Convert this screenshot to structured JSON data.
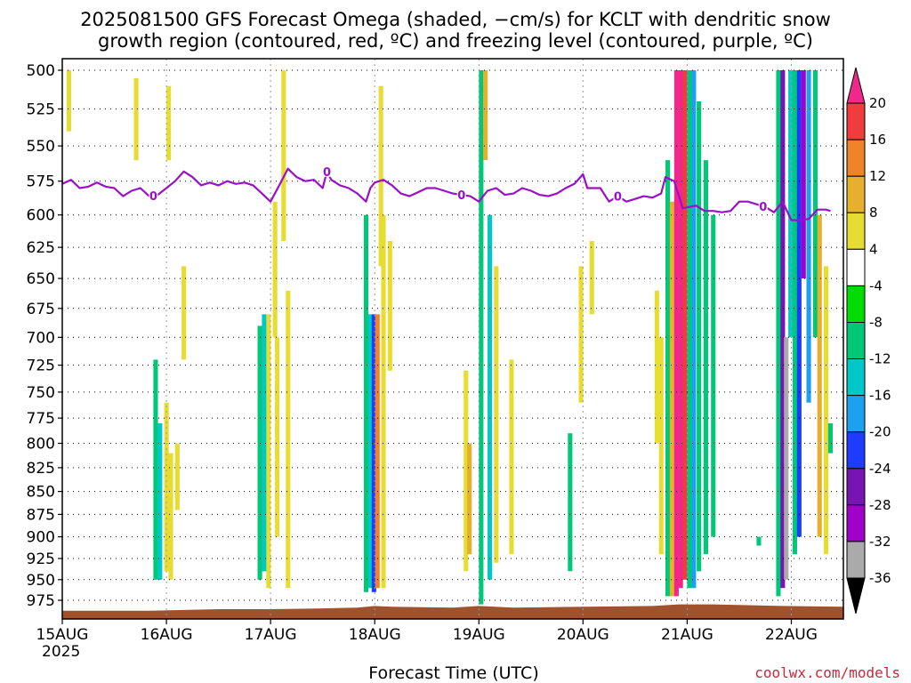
{
  "chart_data": {
    "type": "heatmap",
    "title_line1": "2025081500 GFS Forecast Omega (shaded, −cm/s) for KCLT with dendritic snow",
    "title_line2": "growth region (contoured, red, ºC) and freezing level (contoured, purple, ºC)",
    "xlabel": "Forecast Time (UTC)",
    "credit": "coolwx.com/models",
    "y_axis": {
      "ticks": [
        500,
        525,
        550,
        575,
        600,
        625,
        650,
        675,
        700,
        725,
        750,
        775,
        800,
        825,
        850,
        875,
        900,
        925,
        950,
        975
      ],
      "range": [
        500,
        1000
      ],
      "scale": "log-pressure"
    },
    "x_axis": {
      "ticks": [
        {
          "label": "15AUG",
          "sub": "2025",
          "hour": 0
        },
        {
          "label": "16AUG",
          "sub": "",
          "hour": 24
        },
        {
          "label": "17AUG",
          "sub": "",
          "hour": 48
        },
        {
          "label": "18AUG",
          "sub": "",
          "hour": 72
        },
        {
          "label": "19AUG",
          "sub": "",
          "hour": 96
        },
        {
          "label": "20AUG",
          "sub": "",
          "hour": 120
        },
        {
          "label": "21AUG",
          "sub": "",
          "hour": 144
        },
        {
          "label": "22AUG",
          "sub": "",
          "hour": 168
        }
      ],
      "range": [
        0,
        180
      ]
    },
    "grid": true,
    "colorbar": {
      "labels": [
        20,
        16,
        12,
        8,
        4,
        -4,
        -8,
        -12,
        -16,
        -20,
        -24,
        -28,
        -32,
        -36
      ],
      "colors": [
        "#f0288c",
        "#f03c3c",
        "#f08228",
        "#e6af2d",
        "#e6dc32",
        "#ffffff",
        "#00dc00",
        "#00c878",
        "#00c8c8",
        "#1ea0f0",
        "#1e3cff",
        "#7814b4",
        "#a000c8",
        "#aaaaaa",
        "#000000"
      ]
    },
    "shading_bands": [
      {
        "hour": 1.5,
        "p_top": 500,
        "p_bot": 540,
        "value": 5
      },
      {
        "hour": 17,
        "p_top": 505,
        "p_bot": 560,
        "value": 5
      },
      {
        "hour": 21.5,
        "p_top": 720,
        "p_bot": 950,
        "value": -10
      },
      {
        "hour": 22.5,
        "p_top": 780,
        "p_bot": 950,
        "value": -14
      },
      {
        "hour": 24,
        "p_top": 760,
        "p_bot": 940,
        "value": 6
      },
      {
        "hour": 24.5,
        "p_top": 510,
        "p_bot": 560,
        "value": 5
      },
      {
        "hour": 25,
        "p_top": 810,
        "p_bot": 950,
        "value": 5
      },
      {
        "hour": 26.5,
        "p_top": 800,
        "p_bot": 870,
        "value": 5
      },
      {
        "hour": 28,
        "p_top": 640,
        "p_bot": 720,
        "value": 5
      },
      {
        "hour": 45.5,
        "p_top": 690,
        "p_bot": 950,
        "value": -8
      },
      {
        "hour": 46.5,
        "p_top": 680,
        "p_bot": 940,
        "value": -14
      },
      {
        "hour": 47.5,
        "p_top": 680,
        "p_bot": 960,
        "value": 6
      },
      {
        "hour": 49,
        "p_top": 590,
        "p_bot": 700,
        "value": 5
      },
      {
        "hour": 49.5,
        "p_top": 700,
        "p_bot": 900,
        "value": 5
      },
      {
        "hour": 51,
        "p_top": 500,
        "p_bot": 620,
        "value": 6
      },
      {
        "hour": 52,
        "p_top": 660,
        "p_bot": 960,
        "value": 6
      },
      {
        "hour": 70,
        "p_top": 600,
        "p_bot": 965,
        "value": -8
      },
      {
        "hour": 71,
        "p_top": 680,
        "p_bot": 960,
        "value": -14
      },
      {
        "hour": 71.8,
        "p_top": 680,
        "p_bot": 965,
        "value": -22
      },
      {
        "hour": 72.6,
        "p_top": 680,
        "p_bot": 960,
        "value": 12
      },
      {
        "hour": 73.4,
        "p_top": 510,
        "p_bot": 640,
        "value": 6
      },
      {
        "hour": 74,
        "p_top": 600,
        "p_bot": 960,
        "value": 6
      },
      {
        "hour": 75.5,
        "p_top": 620,
        "p_bot": 730,
        "value": 5
      },
      {
        "hour": 93,
        "p_top": 730,
        "p_bot": 940,
        "value": 6
      },
      {
        "hour": 93.8,
        "p_top": 800,
        "p_bot": 920,
        "value": 10
      },
      {
        "hour": 96.5,
        "p_top": 500,
        "p_bot": 980,
        "value": -8
      },
      {
        "hour": 97.5,
        "p_top": 500,
        "p_bot": 560,
        "value": 10
      },
      {
        "hour": 98.5,
        "p_top": 600,
        "p_bot": 950,
        "value": -14
      },
      {
        "hour": 100,
        "p_top": 640,
        "p_bot": 930,
        "value": 5
      },
      {
        "hour": 103.5,
        "p_top": 720,
        "p_bot": 920,
        "value": 5
      },
      {
        "hour": 117,
        "p_top": 790,
        "p_bot": 940,
        "value": -8
      },
      {
        "hour": 119.5,
        "p_top": 640,
        "p_bot": 760,
        "value": 5
      },
      {
        "hour": 122,
        "p_top": 620,
        "p_bot": 680,
        "value": 6
      },
      {
        "hour": 137,
        "p_top": 660,
        "p_bot": 800,
        "value": 5
      },
      {
        "hour": 138,
        "p_top": 700,
        "p_bot": 920,
        "value": 6
      },
      {
        "hour": 139.5,
        "p_top": 560,
        "p_bot": 970,
        "value": -8
      },
      {
        "hour": 140.5,
        "p_top": 590,
        "p_bot": 970,
        "value": 10
      },
      {
        "hour": 141.5,
        "p_top": 500,
        "p_bot": 970,
        "value": 20
      },
      {
        "hour": 142.5,
        "p_top": 500,
        "p_bot": 960,
        "value": 20
      },
      {
        "hour": 143.5,
        "p_top": 500,
        "p_bot": 950,
        "value": 16
      },
      {
        "hour": 144.5,
        "p_top": 500,
        "p_bot": 960,
        "value": -10
      },
      {
        "hour": 145.5,
        "p_top": 500,
        "p_bot": 960,
        "value": -16
      },
      {
        "hour": 146.7,
        "p_top": 520,
        "p_bot": 940,
        "value": -10
      },
      {
        "hour": 148.3,
        "p_top": 560,
        "p_bot": 920,
        "value": -8
      },
      {
        "hour": 150,
        "p_top": 600,
        "p_bot": 900,
        "value": -8
      },
      {
        "hour": 160.5,
        "p_top": 900,
        "p_bot": 910,
        "value": -8
      },
      {
        "hour": 165,
        "p_top": 500,
        "p_bot": 970,
        "value": -10
      },
      {
        "hour": 166,
        "p_top": 500,
        "p_bot": 960,
        "value": -24
      },
      {
        "hour": 166.8,
        "p_top": 700,
        "p_bot": 950,
        "value": -34
      },
      {
        "hour": 167.8,
        "p_top": 500,
        "p_bot": 700,
        "value": -12
      },
      {
        "hour": 168.8,
        "p_top": 500,
        "p_bot": 920,
        "value": -8
      },
      {
        "hour": 169.8,
        "p_top": 500,
        "p_bot": 900,
        "value": -22
      },
      {
        "hour": 170.8,
        "p_top": 500,
        "p_bot": 650,
        "value": -30
      },
      {
        "hour": 172,
        "p_top": 500,
        "p_bot": 760,
        "value": -16
      },
      {
        "hour": 173.5,
        "p_top": 500,
        "p_bot": 700,
        "value": -10
      },
      {
        "hour": 174.5,
        "p_top": 600,
        "p_bot": 900,
        "value": 10
      },
      {
        "hour": 176,
        "p_top": 640,
        "p_bot": 920,
        "value": 6
      },
      {
        "hour": 177,
        "p_top": 780,
        "p_bot": 810,
        "value": -8
      }
    ],
    "freezing_level": {
      "label": "0",
      "label_hours": [
        21,
        61,
        92,
        128,
        161.5
      ],
      "points": [
        [
          0,
          577
        ],
        [
          2,
          574
        ],
        [
          4,
          580
        ],
        [
          6,
          579
        ],
        [
          8,
          576
        ],
        [
          10,
          579
        ],
        [
          12,
          580
        ],
        [
          14,
          586
        ],
        [
          16,
          582
        ],
        [
          18,
          580
        ],
        [
          20,
          586
        ],
        [
          22,
          585
        ],
        [
          24,
          580
        ],
        [
          26,
          575
        ],
        [
          28,
          568
        ],
        [
          30,
          572
        ],
        [
          32,
          578
        ],
        [
          34,
          576
        ],
        [
          36,
          578
        ],
        [
          38,
          575
        ],
        [
          40,
          577
        ],
        [
          42,
          576
        ],
        [
          44,
          578
        ],
        [
          46,
          584
        ],
        [
          48,
          590
        ],
        [
          50,
          578
        ],
        [
          52,
          566
        ],
        [
          54,
          572
        ],
        [
          56,
          575
        ],
        [
          58,
          574
        ],
        [
          60,
          580
        ],
        [
          61,
          568
        ],
        [
          62,
          574
        ],
        [
          64,
          578
        ],
        [
          66,
          580
        ],
        [
          68,
          584
        ],
        [
          70,
          590
        ],
        [
          71,
          580
        ],
        [
          72,
          576
        ],
        [
          74,
          574
        ],
        [
          76,
          578
        ],
        [
          78,
          584
        ],
        [
          80,
          586
        ],
        [
          82,
          583
        ],
        [
          84,
          580
        ],
        [
          86,
          580
        ],
        [
          88,
          582
        ],
        [
          90,
          584
        ],
        [
          92,
          585
        ],
        [
          94,
          586
        ],
        [
          96,
          590
        ],
        [
          98,
          582
        ],
        [
          100,
          580
        ],
        [
          102,
          585
        ],
        [
          104,
          584
        ],
        [
          106,
          580
        ],
        [
          108,
          582
        ],
        [
          110,
          585
        ],
        [
          112,
          586
        ],
        [
          114,
          584
        ],
        [
          116,
          580
        ],
        [
          118,
          577
        ],
        [
          120,
          570
        ],
        [
          121,
          580
        ],
        [
          124,
          580
        ],
        [
          126,
          590
        ],
        [
          128,
          586
        ],
        [
          130,
          590
        ],
        [
          132,
          588
        ],
        [
          134,
          586
        ],
        [
          136,
          587
        ],
        [
          138,
          584
        ],
        [
          139,
          572
        ],
        [
          141,
          575
        ],
        [
          143,
          595
        ],
        [
          146,
          593
        ],
        [
          148,
          597
        ],
        [
          150,
          597
        ],
        [
          152,
          598
        ],
        [
          154,
          597
        ],
        [
          156,
          590
        ],
        [
          158,
          590
        ],
        [
          160,
          592
        ],
        [
          162,
          594
        ],
        [
          164,
          598
        ],
        [
          166,
          590
        ],
        [
          168,
          604
        ],
        [
          170,
          604
        ],
        [
          172,
          603
        ],
        [
          174,
          596
        ],
        [
          176,
          596
        ],
        [
          177,
          597
        ]
      ]
    },
    "ground": {
      "color": "#a0522d",
      "points": [
        [
          0,
          988
        ],
        [
          20,
          988
        ],
        [
          36,
          986
        ],
        [
          48,
          986
        ],
        [
          60,
          985
        ],
        [
          68,
          984
        ],
        [
          72,
          982
        ],
        [
          76,
          983
        ],
        [
          90,
          984
        ],
        [
          96,
          982
        ],
        [
          104,
          984
        ],
        [
          120,
          983
        ],
        [
          136,
          982
        ],
        [
          142,
          980
        ],
        [
          150,
          980
        ],
        [
          158,
          981
        ],
        [
          166,
          982
        ],
        [
          180,
          983
        ]
      ]
    }
  }
}
